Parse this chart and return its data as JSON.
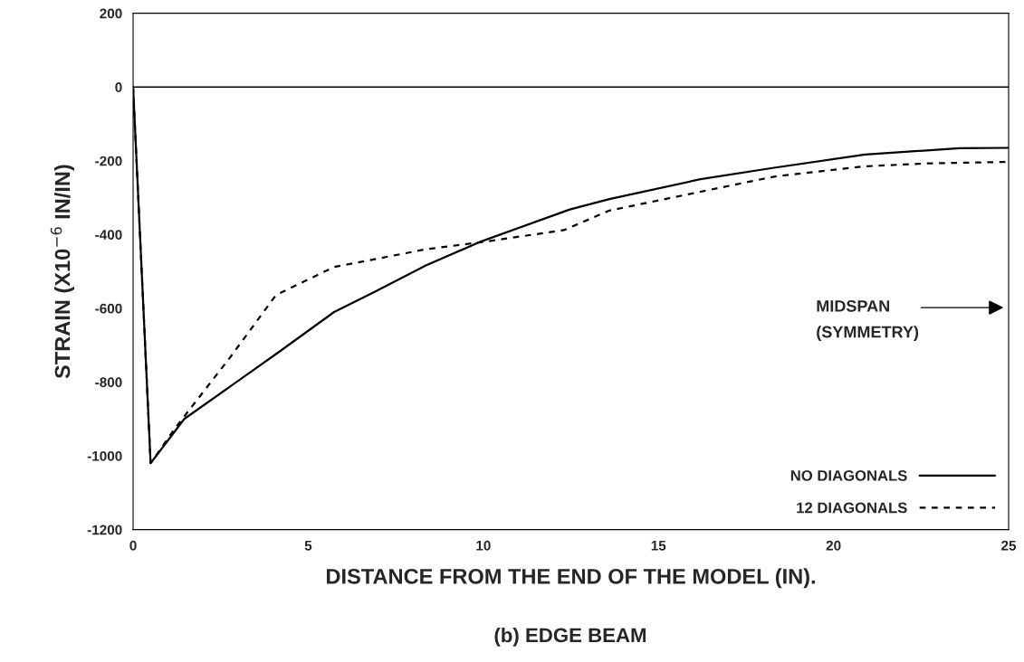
{
  "chart_data": {
    "type": "line",
    "title": "(b) EDGE BEAM",
    "xlabel": "DISTANCE FROM THE END OF THE MODEL (IN).",
    "ylabel": "STRAIN (X10$^{−6}$ IN/IN)",
    "xlim": [
      0,
      25
    ],
    "xticks": [
      0,
      5,
      10,
      15,
      20,
      25
    ],
    "ylim": [
      -1200,
      200
    ],
    "yticks": [
      -1200,
      -1000,
      -800,
      -600,
      -400,
      -200,
      0,
      200
    ],
    "grid": false,
    "legend": "bottom right",
    "marker": "none",
    "ref_lines": [
      {
        "axis": "y",
        "value": 0,
        "color": "#000000",
        "line_style": "solid"
      }
    ],
    "annotations": [
      "MIDSPAN\n(SYMMETRY)"
    ],
    "series": [
      {
        "name": "NO DIAGONALS",
        "color": "#000000",
        "line_style": "solid",
        "x": [
          0,
          0.5,
          1.46,
          4.17,
          5.74,
          6.87,
          8.36,
          9.93,
          12.47,
          13.6,
          16.2,
          18.3,
          20.9,
          23.6,
          25
        ],
        "values": [
          0,
          -1020,
          -900,
          -718,
          -610,
          -557,
          -484,
          -419,
          -332,
          -304,
          -250,
          -219,
          -183,
          -166,
          -165
        ]
      },
      {
        "name": "12 DIAGONALS",
        "color": "#000000",
        "line_style": "dashed",
        "x": [
          0,
          0.5,
          1.2,
          2.77,
          4.08,
          5.74,
          8.36,
          10.0,
          12.3,
          13.6,
          16.2,
          18.3,
          20.9,
          22.7,
          25
        ],
        "values": [
          0,
          -1020,
          -925,
          -733,
          -564,
          -488,
          -440,
          -420,
          -388,
          -335,
          -284,
          -243,
          -215,
          -207,
          -203
        ]
      }
    ]
  }
}
